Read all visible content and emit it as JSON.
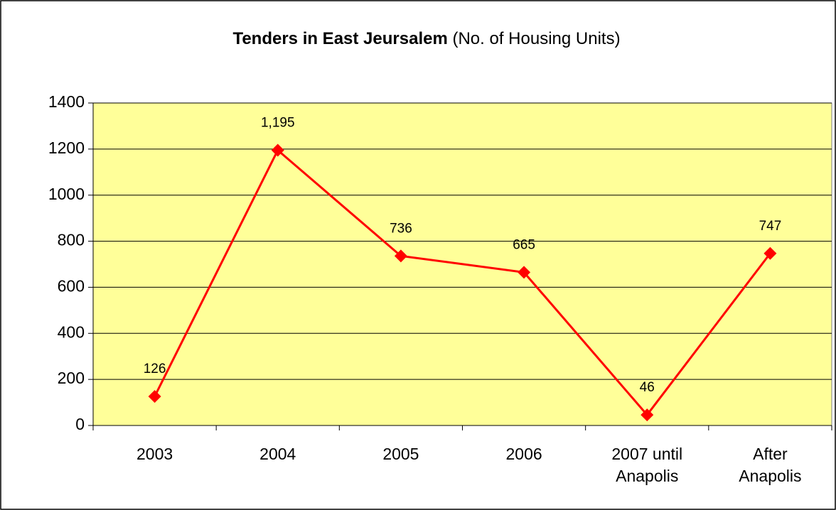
{
  "chart_data": {
    "type": "line",
    "title": "Tenders in East Jeursalem",
    "subtitle": "(No. of Housing Units)",
    "categories": [
      "2003",
      "2004",
      "2005",
      "2006",
      "2007 until Anapolis",
      "After Anapolis"
    ],
    "values": [
      126,
      1195,
      736,
      665,
      46,
      747
    ],
    "value_labels": [
      "126",
      "1,195",
      "736",
      "665",
      "46",
      "747"
    ],
    "color": "#ff0000",
    "plot_background": "#ffff99",
    "ylim": [
      0,
      1400
    ],
    "yticks": [
      0,
      200,
      400,
      600,
      800,
      1000,
      1200,
      1400
    ],
    "grid": true
  }
}
